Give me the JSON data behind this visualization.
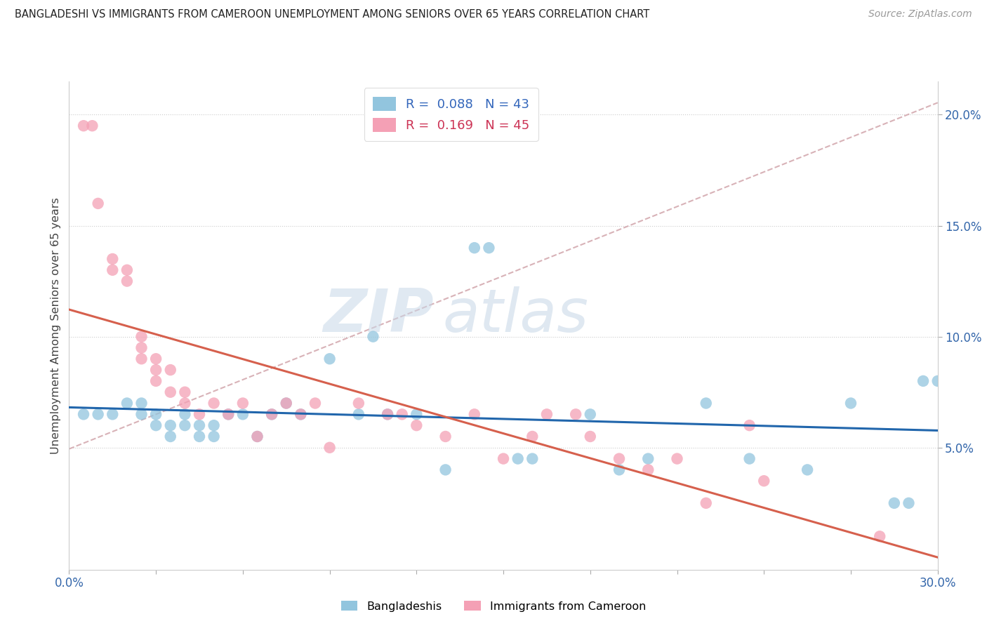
{
  "title": "BANGLADESHI VS IMMIGRANTS FROM CAMEROON UNEMPLOYMENT AMONG SENIORS OVER 65 YEARS CORRELATION CHART",
  "source": "Source: ZipAtlas.com",
  "ylabel": "Unemployment Among Seniors over 65 years",
  "xlim": [
    0.0,
    0.3
  ],
  "ylim": [
    -0.005,
    0.215
  ],
  "xticks": [
    0.0,
    0.03,
    0.06,
    0.09,
    0.12,
    0.15,
    0.18,
    0.21,
    0.24,
    0.27,
    0.3
  ],
  "yticks": [
    0.05,
    0.1,
    0.15,
    0.2
  ],
  "ytick_labels": [
    "5.0%",
    "10.0%",
    "15.0%",
    "20.0%"
  ],
  "xtick_labels_show": [
    "0.0%",
    "30.0%"
  ],
  "legend_r1": "R =  0.088",
  "legend_n1": "N = 43",
  "legend_r2": "R =  0.169",
  "legend_n2": "N = 45",
  "color_blue": "#92c5de",
  "color_pink": "#f4a0b5",
  "color_blue_line": "#2166ac",
  "color_pink_line": "#d6604d",
  "color_dash": "#d4aab0",
  "watermark_zip": "ZIP",
  "watermark_atlas": "atlas",
  "blue_x": [
    0.005,
    0.01,
    0.015,
    0.02,
    0.025,
    0.025,
    0.03,
    0.03,
    0.035,
    0.035,
    0.04,
    0.04,
    0.045,
    0.045,
    0.05,
    0.05,
    0.055,
    0.06,
    0.065,
    0.07,
    0.075,
    0.08,
    0.09,
    0.1,
    0.105,
    0.11,
    0.12,
    0.13,
    0.14,
    0.145,
    0.155,
    0.16,
    0.18,
    0.19,
    0.2,
    0.22,
    0.235,
    0.255,
    0.27,
    0.285,
    0.29,
    0.295,
    0.3
  ],
  "blue_y": [
    0.065,
    0.065,
    0.065,
    0.07,
    0.065,
    0.07,
    0.06,
    0.065,
    0.055,
    0.06,
    0.06,
    0.065,
    0.055,
    0.06,
    0.055,
    0.06,
    0.065,
    0.065,
    0.055,
    0.065,
    0.07,
    0.065,
    0.09,
    0.065,
    0.1,
    0.065,
    0.065,
    0.04,
    0.14,
    0.14,
    0.045,
    0.045,
    0.065,
    0.04,
    0.045,
    0.07,
    0.045,
    0.04,
    0.07,
    0.025,
    0.025,
    0.08,
    0.08
  ],
  "pink_x": [
    0.005,
    0.008,
    0.01,
    0.015,
    0.015,
    0.02,
    0.02,
    0.025,
    0.025,
    0.025,
    0.03,
    0.03,
    0.03,
    0.035,
    0.035,
    0.04,
    0.04,
    0.045,
    0.05,
    0.055,
    0.06,
    0.065,
    0.07,
    0.075,
    0.08,
    0.085,
    0.09,
    0.1,
    0.11,
    0.115,
    0.12,
    0.13,
    0.14,
    0.15,
    0.16,
    0.165,
    0.175,
    0.18,
    0.19,
    0.2,
    0.21,
    0.22,
    0.235,
    0.24,
    0.28
  ],
  "pink_y": [
    0.195,
    0.195,
    0.16,
    0.13,
    0.135,
    0.125,
    0.13,
    0.09,
    0.095,
    0.1,
    0.08,
    0.085,
    0.09,
    0.075,
    0.085,
    0.07,
    0.075,
    0.065,
    0.07,
    0.065,
    0.07,
    0.055,
    0.065,
    0.07,
    0.065,
    0.07,
    0.05,
    0.07,
    0.065,
    0.065,
    0.06,
    0.055,
    0.065,
    0.045,
    0.055,
    0.065,
    0.065,
    0.055,
    0.045,
    0.04,
    0.045,
    0.025,
    0.06,
    0.035,
    0.01
  ]
}
